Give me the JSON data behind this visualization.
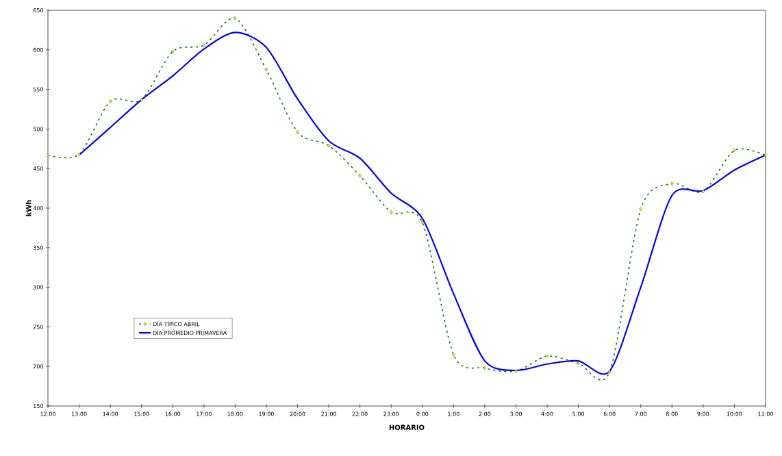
{
  "chart_data": {
    "type": "line",
    "xlabel": "HORARIO",
    "ylabel": "kWh",
    "categories": [
      "12:00",
      "13:00",
      "14:00",
      "15:00",
      "16:00",
      "17:00",
      "18:00",
      "19:00",
      "20:00",
      "21:00",
      "22:00",
      "23:00",
      "0:00",
      "1:00",
      "2:00",
      "3:00",
      "4:00",
      "5:00",
      "6:00",
      "7:00",
      "8:00",
      "9:00",
      "10:00",
      "11:00"
    ],
    "series": [
      {
        "name": "DÍA TÍPICO ABRIL",
        "color": "#008000",
        "marker": "diamond",
        "line_style": "dotted",
        "values": [
          467,
          468,
          535,
          537,
          598,
          606,
          640,
          575,
          496,
          479,
          441,
          395,
          382,
          215,
          198,
          194,
          213,
          204,
          193,
          399,
          431,
          421,
          473,
          467
        ]
      },
      {
        "name": "DÍA PROMEDIO PRIMAVERA",
        "color": "#0000ff",
        "marker": "none",
        "line_style": "solid",
        "values": [
          null,
          467,
          502,
          537,
          567,
          601,
          622,
          603,
          538,
          485,
          463,
          419,
          387,
          292,
          207,
          195,
          203,
          207,
          194,
          300,
          416,
          422,
          448,
          467
        ]
      }
    ],
    "ylim": [
      150,
      650
    ],
    "yticks": [
      150,
      200,
      250,
      300,
      350,
      400,
      450,
      500,
      550,
      600,
      650
    ],
    "grid": false,
    "legend": "bottom left"
  }
}
